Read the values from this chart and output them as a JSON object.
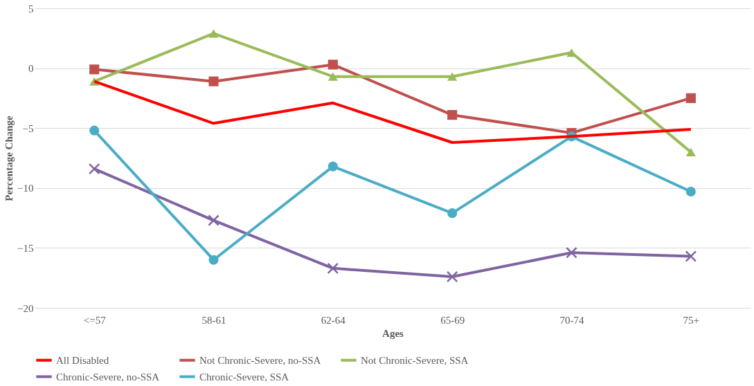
{
  "chart_data": {
    "type": "line",
    "xlabel": "Ages",
    "ylabel": "Percentage Change",
    "categories": [
      "<=57",
      "58-61",
      "62-64",
      "65-69",
      "70-74",
      "75+"
    ],
    "series": [
      {
        "name": "All Disabled",
        "color": "#ff0000",
        "marker": "none",
        "values": [
          -1.1,
          -4.6,
          -2.9,
          -6.2,
          -5.7,
          -5.1
        ]
      },
      {
        "name": "Not Chronic-Severe, no-SSA",
        "color": "#c0504d",
        "marker": "square",
        "values": [
          -0.1,
          -1.1,
          0.3,
          -3.9,
          -5.4,
          -2.5
        ]
      },
      {
        "name": "Not Chronic-Severe, SSA",
        "color": "#9bbb59",
        "marker": "triangle",
        "values": [
          -1.1,
          2.9,
          -0.7,
          -0.7,
          1.3,
          -7.0
        ]
      },
      {
        "name": "Chronic-Severe, no-SSA",
        "color": "#8064a2",
        "marker": "cross",
        "values": [
          -8.4,
          -12.7,
          -16.7,
          -17.4,
          -15.4,
          -15.7
        ]
      },
      {
        "name": "Chronic-Severe, SSA",
        "color": "#4bacc6",
        "marker": "circle",
        "values": [
          -5.2,
          -16.0,
          -8.2,
          -12.1,
          -5.7,
          -10.3
        ]
      }
    ],
    "ylim": [
      -20,
      5
    ],
    "yticks": [
      -20,
      -15,
      -10,
      -5,
      0,
      5
    ],
    "grid": "y",
    "legend": "bottom",
    "line_style": "solid"
  }
}
